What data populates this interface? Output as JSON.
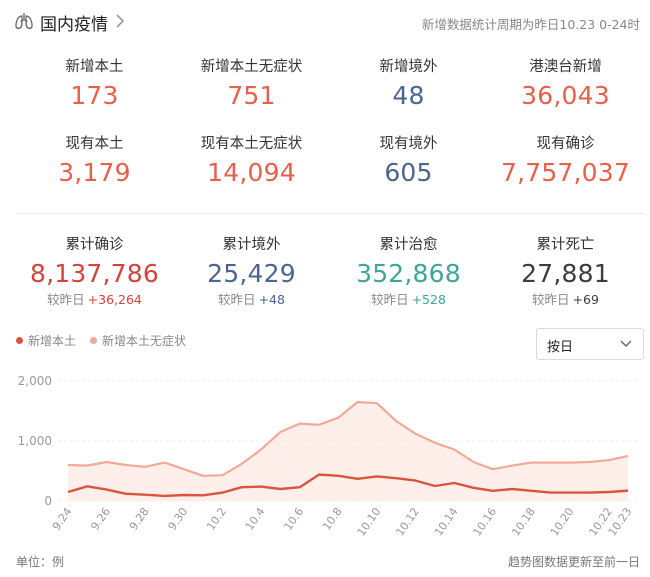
{
  "header": {
    "title": "国内疫情",
    "note": "新增数据统计周期为昨日10.23 0-24时"
  },
  "summary": {
    "row1": [
      {
        "label": "新增本土",
        "value": "173",
        "color": "#e8604a"
      },
      {
        "label": "新增本土无症状",
        "value": "751",
        "color": "#e8604a"
      },
      {
        "label": "新增境外",
        "value": "48",
        "color": "#4a6590"
      },
      {
        "label": "港澳台新增",
        "value": "36,043",
        "color": "#e8604a"
      }
    ],
    "row2": [
      {
        "label": "现有本土",
        "value": "3,179",
        "color": "#e8604a"
      },
      {
        "label": "现有本土无症状",
        "value": "14,094",
        "color": "#e8604a"
      },
      {
        "label": "现有境外",
        "value": "605",
        "color": "#4a6590"
      },
      {
        "label": "现有确诊",
        "value": "7,757,037",
        "color": "#e8604a"
      }
    ],
    "row3": [
      {
        "label": "累计确诊",
        "value": "8,137,786",
        "color": "#d2433a",
        "delta_label": "较昨日",
        "delta": "+36,264"
      },
      {
        "label": "累计境外",
        "value": "25,429",
        "color": "#4a6590",
        "delta_label": "较昨日",
        "delta": "+48"
      },
      {
        "label": "累计治愈",
        "value": "352,868",
        "color": "#3fa596",
        "delta_label": "较昨日",
        "delta": "+528"
      },
      {
        "label": "累计死亡",
        "value": "27,881",
        "color": "#3c3c3c",
        "delta_label": "较昨日",
        "delta": "+69"
      }
    ]
  },
  "legend": [
    {
      "name": "新增本土",
      "color": "#d9553e"
    },
    {
      "name": "新增本土无症状",
      "color": "#f3a998"
    }
  ],
  "select": {
    "value": "按日"
  },
  "footer": {
    "unit": "单位：例",
    "note": "趋势图数据更新至前一日"
  },
  "chart_data": {
    "type": "area",
    "x": [
      "9.24",
      "9.25",
      "9.26",
      "9.27",
      "9.28",
      "9.29",
      "9.30",
      "10.1",
      "10.2",
      "10.3",
      "10.4",
      "10.5",
      "10.6",
      "10.7",
      "10.8",
      "10.9",
      "10.10",
      "10.11",
      "10.12",
      "10.13",
      "10.14",
      "10.15",
      "10.16",
      "10.17",
      "10.18",
      "10.19",
      "10.20",
      "10.21",
      "10.22",
      "10.23"
    ],
    "x_ticks": [
      "9.24",
      "9.26",
      "9.28",
      "9.30",
      "10.2",
      "10.4",
      "10.6",
      "10.8",
      "10.10",
      "10.12",
      "10.14",
      "10.16",
      "10.18",
      "10.20",
      "10.22",
      "10.23"
    ],
    "yticks": [
      0,
      1000,
      2000
    ],
    "ytick_labels": [
      "0",
      "1,000",
      "2,000"
    ],
    "ylim": [
      0,
      2000
    ],
    "grid": true,
    "series": [
      {
        "name": "新增本土",
        "color": "#d9553e",
        "values": [
          150,
          245,
          190,
          120,
          105,
          85,
          100,
          95,
          140,
          230,
          240,
          200,
          230,
          440,
          420,
          370,
          410,
          380,
          340,
          250,
          300,
          220,
          170,
          200,
          170,
          140,
          140,
          140,
          150,
          173
        ]
      },
      {
        "name": "新增本土无症状",
        "color": "#f3a998",
        "values": [
          600,
          590,
          650,
          600,
          570,
          640,
          530,
          420,
          430,
          620,
          860,
          1150,
          1290,
          1270,
          1390,
          1650,
          1630,
          1330,
          1120,
          970,
          860,
          650,
          530,
          590,
          640,
          640,
          640,
          650,
          680,
          751
        ]
      }
    ]
  }
}
